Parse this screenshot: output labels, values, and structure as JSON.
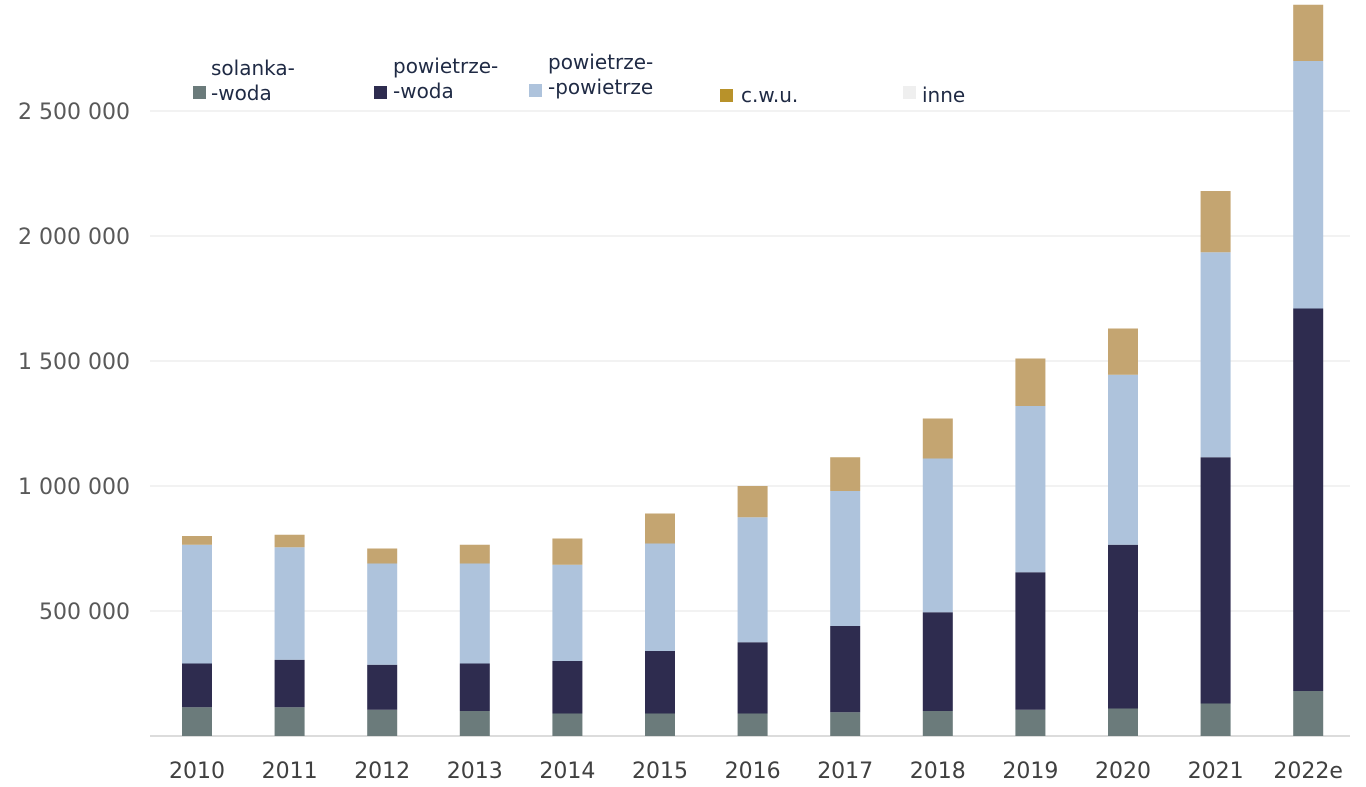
{
  "chart_data": {
    "type": "bar",
    "stacked": true,
    "categories": [
      "2010",
      "2011",
      "2012",
      "2013",
      "2014",
      "2015",
      "2016",
      "2017",
      "2018",
      "2019",
      "2020",
      "2021",
      "2022e"
    ],
    "ylim": [
      0,
      2900000
    ],
    "yticks": [
      500000,
      1000000,
      1500000,
      2000000,
      2500000
    ],
    "ytick_labels": [
      "500 000",
      "1 000 000",
      "1 500 000",
      "2 000 000",
      "2 500 000"
    ],
    "grid": true,
    "legend": "top",
    "series": [
      {
        "name": "solanka--woda",
        "label_lines": [
          "solanka-",
          "-woda"
        ],
        "color": "#6b7b7b",
        "values": [
          115000,
          115000,
          105000,
          100000,
          90000,
          90000,
          90000,
          95000,
          100000,
          105000,
          110000,
          130000,
          180000
        ]
      },
      {
        "name": "powietrze--woda",
        "label_lines": [
          "powietrze-",
          "-woda"
        ],
        "color": "#2e2c4f",
        "values": [
          175000,
          190000,
          180000,
          190000,
          210000,
          250000,
          285000,
          345000,
          395000,
          550000,
          655000,
          985000,
          1530000
        ]
      },
      {
        "name": "powietrze--powietrze",
        "label_lines": [
          "powietrze-",
          "-powietrze"
        ],
        "color": "#aec3dc",
        "values": [
          475000,
          450000,
          405000,
          400000,
          385000,
          430000,
          500000,
          540000,
          615000,
          665000,
          680000,
          820000,
          990000
        ]
      },
      {
        "name": "c.w.u.",
        "label_lines": [
          "c.w.u."
        ],
        "color": "#c4a571",
        "values": [
          35000,
          50000,
          60000,
          75000,
          105000,
          120000,
          125000,
          135000,
          160000,
          190000,
          185000,
          245000,
          225000
        ]
      },
      {
        "name": "inne",
        "label_lines": [
          "inne"
        ],
        "color": "#efefef",
        "values": [
          0,
          0,
          0,
          0,
          0,
          0,
          0,
          0,
          0,
          0,
          0,
          0,
          0
        ]
      }
    ]
  },
  "colors": {
    "cwu_legend_swatch": "#b8922a"
  }
}
